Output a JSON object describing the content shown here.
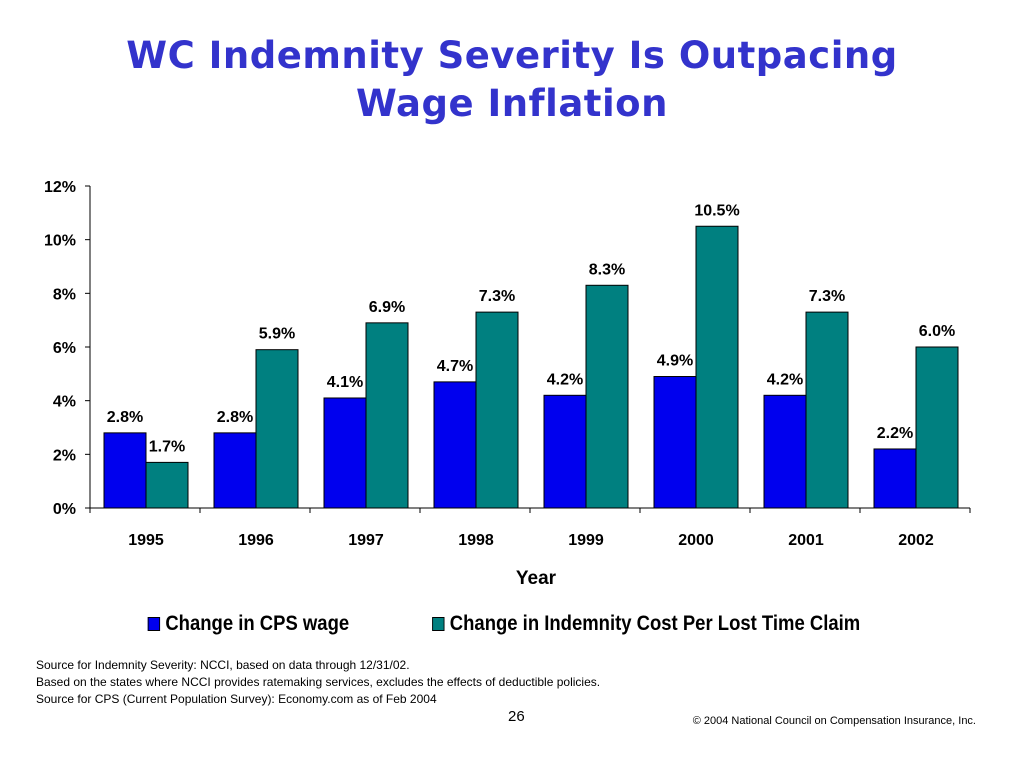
{
  "title_lines": [
    "WC Indemnity Severity Is Outpacing",
    "Wage Inflation"
  ],
  "notes": [
    "Source for Indemnity Severity: NCCI, based on data through 12/31/02.",
    "Based on the states where NCCI provides ratemaking services, excludes the effects of deductible policies.",
    "Source for CPS (Current Population Survey): Economy.com as of Feb 2004"
  ],
  "page_number": "26",
  "copyright": "© 2004 National Council on Compensation Insurance, Inc.",
  "chart_data": {
    "type": "bar",
    "title": "WC Indemnity Severity Is Outpacing Wage Inflation",
    "xlabel": "Year",
    "ylabel": "",
    "categories": [
      "1995",
      "1996",
      "1997",
      "1998",
      "1999",
      "2000",
      "2001",
      "2002"
    ],
    "series": [
      {
        "name": "Change in CPS wage",
        "color": "#0000ee",
        "values": [
          2.8,
          2.8,
          4.1,
          4.7,
          4.2,
          4.9,
          4.2,
          2.2
        ],
        "labels": [
          "2.8%",
          "2.8%",
          "4.1%",
          "4.7%",
          "4.2%",
          "4.9%",
          "4.2%",
          "2.2%"
        ]
      },
      {
        "name": "Change in Indemnity Cost Per Lost Time Claim",
        "color": "#008080",
        "values": [
          1.7,
          5.9,
          6.9,
          7.3,
          8.3,
          10.5,
          7.3,
          6.0
        ],
        "labels": [
          "1.7%",
          "5.9%",
          "6.9%",
          "7.3%",
          "8.3%",
          "10.5%",
          "7.3%",
          "6.0%"
        ]
      }
    ],
    "ylim": [
      0,
      12
    ],
    "yticks": [
      0,
      2,
      4,
      6,
      8,
      10,
      12
    ],
    "ytick_labels": [
      "0%",
      "2%",
      "4%",
      "6%",
      "8%",
      "10%",
      "12%"
    ],
    "grid": false,
    "legend": "bottom"
  }
}
